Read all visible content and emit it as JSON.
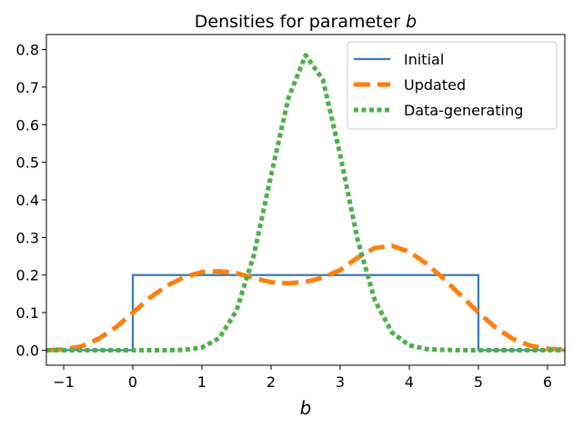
{
  "chart_data": {
    "type": "line",
    "title_prefix": "Densities for parameter ",
    "title_symbol": "b",
    "xlabel": "b",
    "ylabel": "",
    "xlim": [
      -1.25,
      6.25
    ],
    "ylim": [
      -0.04,
      0.84
    ],
    "xticks": [
      -1,
      0,
      1,
      2,
      3,
      4,
      5,
      6
    ],
    "xtick_labels": [
      "−1",
      "0",
      "1",
      "2",
      "3",
      "4",
      "5",
      "6"
    ],
    "yticks": [
      0.0,
      0.1,
      0.2,
      0.3,
      0.4,
      0.5,
      0.6,
      0.7,
      0.8
    ],
    "ytick_labels": [
      "0.0",
      "0.1",
      "0.2",
      "0.3",
      "0.4",
      "0.5",
      "0.6",
      "0.7",
      "0.8"
    ],
    "grid": false,
    "legend_position": "top-right",
    "series": [
      {
        "name": "Initial",
        "color": "#3a7ab8",
        "style": "solid",
        "x": [
          -1.25,
          0,
          0,
          5,
          5,
          6.25
        ],
        "y": [
          0,
          0,
          0.2,
          0.2,
          0,
          0
        ]
      },
      {
        "name": "Updated",
        "color": "#ff7f0e",
        "style": "dashed",
        "x": [
          -1.25,
          -1,
          -0.75,
          -0.5,
          -0.25,
          0,
          0.25,
          0.5,
          0.75,
          1,
          1.25,
          1.5,
          1.75,
          2,
          2.25,
          2.5,
          2.75,
          3,
          3.25,
          3.5,
          3.75,
          4,
          4.25,
          4.5,
          4.75,
          5,
          5.25,
          5.5,
          5.75,
          6,
          6.25
        ],
        "y": [
          0.0,
          0.002,
          0.01,
          0.03,
          0.06,
          0.1,
          0.14,
          0.172,
          0.195,
          0.208,
          0.21,
          0.205,
          0.192,
          0.181,
          0.178,
          0.182,
          0.193,
          0.213,
          0.246,
          0.272,
          0.278,
          0.262,
          0.23,
          0.19,
          0.145,
          0.1,
          0.06,
          0.03,
          0.012,
          0.004,
          0.001
        ]
      },
      {
        "name": "Data-generating",
        "color": "#4daf4a",
        "style": "dotted",
        "x": [
          -1.25,
          -1,
          -0.75,
          -0.5,
          -0.25,
          0,
          0.25,
          0.5,
          0.75,
          1,
          1.25,
          1.5,
          1.75,
          2,
          2.25,
          2.5,
          2.75,
          3,
          3.25,
          3.5,
          3.75,
          4,
          4.25,
          4.5,
          4.75,
          5,
          5.25,
          5.5,
          5.75,
          6,
          6.25
        ],
        "y": [
          0.0,
          0.0,
          0.0,
          0.0,
          0.0,
          0.0,
          0.0,
          0.0,
          0.001,
          0.007,
          0.032,
          0.105,
          0.252,
          0.465,
          0.67,
          0.785,
          0.72,
          0.52,
          0.296,
          0.133,
          0.047,
          0.013,
          0.003,
          0.001,
          0.0,
          0.0,
          0.0,
          0.0,
          0.0,
          0.0,
          0.0
        ]
      }
    ]
  }
}
